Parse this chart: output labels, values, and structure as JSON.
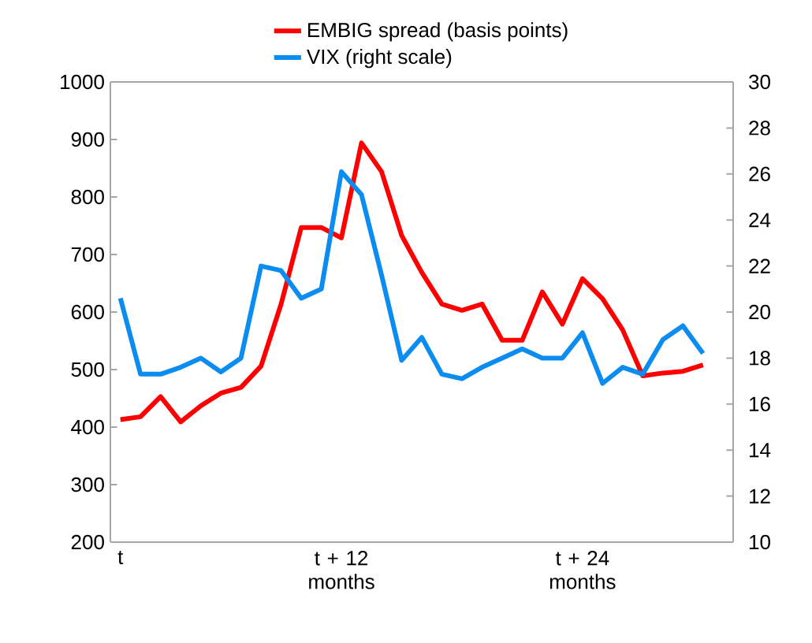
{
  "chart_data": {
    "type": "line",
    "categories": [
      "t",
      null,
      null,
      null,
      null,
      null,
      null,
      null,
      null,
      null,
      null,
      "t + 12 months",
      null,
      null,
      null,
      null,
      null,
      null,
      null,
      null,
      null,
      null,
      null,
      "t + 24 months",
      null,
      null,
      null,
      null,
      null,
      null,
      null
    ],
    "series": [
      {
        "name": "EMBIG spread (basis points)",
        "color": "#ff0000",
        "values": [
          413,
          418,
          453,
          409,
          437,
          459,
          469,
          506,
          614,
          747,
          747,
          729,
          894,
          844,
          733,
          669,
          614,
          603,
          614,
          551,
          551,
          635,
          579,
          658,
          623,
          569,
          489,
          494,
          497,
          508,
          null
        ]
      },
      {
        "name": "VIX (right scale)",
        "color": "#0a8cf0",
        "axis": "y2",
        "values": [
          20.6,
          17.3,
          17.3,
          17.6,
          18.0,
          17.4,
          18.0,
          22.0,
          21.8,
          20.6,
          21.0,
          26.1,
          25.1,
          21.6,
          17.9,
          18.9,
          17.3,
          17.1,
          17.6,
          18.0,
          18.4,
          18.0,
          18.0,
          19.1,
          16.9,
          17.6,
          17.3,
          18.8,
          19.4,
          18.2,
          null
        ]
      }
    ],
    "ylim": [
      200,
      1000
    ],
    "yticks": [
      200,
      300,
      400,
      500,
      600,
      700,
      800,
      900,
      1000
    ],
    "y2lim": [
      10,
      30
    ],
    "y2ticks": [
      10,
      12,
      14,
      16,
      18,
      20,
      22,
      24,
      26,
      28,
      30
    ],
    "grid": false,
    "legend": "top",
    "marker": "none",
    "line_style": "solid"
  }
}
